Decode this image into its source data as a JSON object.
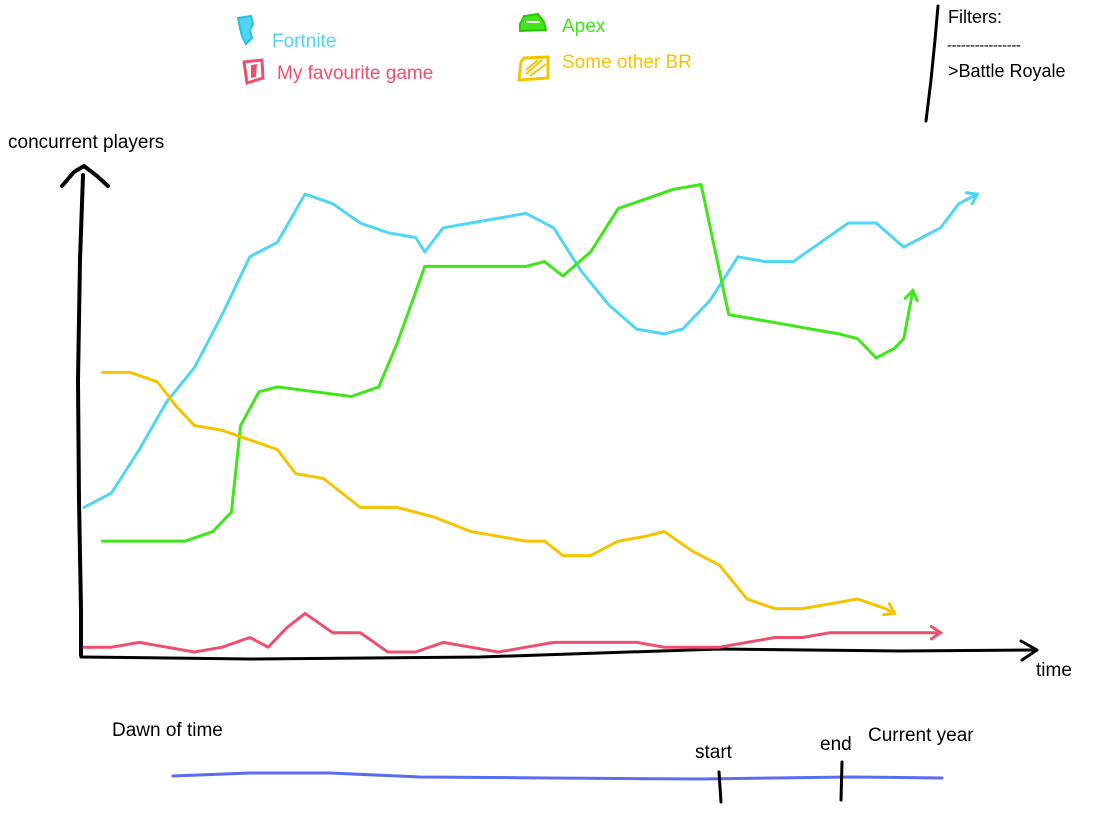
{
  "legend": {
    "items": [
      {
        "label": "Fortnite",
        "color": "#4fd6f2",
        "icon": "fortnite-logo-icon"
      },
      {
        "label": "My favourite game",
        "color": "#ef4f6f",
        "icon": "favourite-game-logo-icon"
      },
      {
        "label": "Apex",
        "color": "#3ee61a",
        "icon": "apex-logo-icon"
      },
      {
        "label": "Some other BR",
        "color": "#f5c400",
        "icon": "other-br-logo-icon"
      }
    ]
  },
  "filters": {
    "title": "Filters:",
    "separator": "----------------",
    "items": [
      ">Battle Royale"
    ]
  },
  "timeline": {
    "left_label": "Dawn of time",
    "right_label": "Current year",
    "start_label": "start",
    "end_label": "end",
    "start_fraction": 0.71,
    "end_fraction": 0.87,
    "line_color": "#5b6cf0"
  },
  "chart_data": {
    "type": "line",
    "title": "",
    "xlabel": "time",
    "ylabel": "concurrent players",
    "xlim": [
      0,
      100
    ],
    "ylim": [
      0,
      100
    ],
    "grid": false,
    "legend_position": "top",
    "series": [
      {
        "name": "Fortnite",
        "color": "#4fd6f2",
        "x": [
          0,
          3,
          6,
          9,
          12,
          15,
          18,
          21,
          24,
          27,
          30,
          33,
          36,
          37,
          39,
          42,
          45,
          48,
          51,
          54,
          57,
          60,
          63,
          65,
          68,
          71,
          74,
          77,
          80,
          83,
          86,
          89,
          91,
          93,
          95,
          97
        ],
        "y": [
          30,
          33,
          42,
          52,
          59,
          70,
          82,
          85,
          95,
          93,
          89,
          87,
          86,
          83,
          88,
          89,
          90,
          91,
          88,
          79,
          72,
          67,
          66,
          67,
          73,
          82,
          81,
          81,
          85,
          89,
          89,
          84,
          86,
          88,
          93,
          95
        ]
      },
      {
        "name": "Apex",
        "color": "#3ee61a",
        "x": [
          2,
          7,
          11,
          14,
          16,
          17,
          19,
          21,
          25,
          29,
          32,
          34,
          37,
          40,
          44,
          48,
          50,
          52,
          55,
          58,
          61,
          64,
          67,
          70,
          73,
          76,
          79,
          82,
          84,
          86,
          88,
          89,
          90
        ],
        "y": [
          23,
          23,
          23,
          25,
          29,
          47,
          54,
          55,
          54,
          53,
          55,
          64,
          80,
          80,
          80,
          80,
          81,
          78,
          83,
          92,
          94,
          96,
          97,
          70,
          69,
          68,
          67,
          66,
          65,
          61,
          63,
          65,
          75
        ]
      },
      {
        "name": "Some other BR",
        "color": "#f5c400",
        "x": [
          2,
          5,
          8,
          10,
          12,
          15,
          18,
          21,
          23,
          26,
          30,
          34,
          38,
          42,
          45,
          48,
          50,
          52,
          55,
          58,
          61,
          63,
          66,
          69,
          72,
          75,
          78,
          81,
          84,
          87,
          88
        ],
        "y": [
          58,
          58,
          56,
          51,
          47,
          46,
          44,
          42,
          37,
          36,
          30,
          30,
          28,
          25,
          24,
          23,
          23,
          20,
          20,
          23,
          24,
          25,
          21,
          18,
          11,
          9,
          9,
          10,
          11,
          9,
          8
        ]
      },
      {
        "name": "My favourite game",
        "color": "#ef4f6f",
        "x": [
          0,
          3,
          6,
          9,
          12,
          15,
          18,
          20,
          22,
          24,
          27,
          30,
          33,
          36,
          39,
          42,
          45,
          48,
          51,
          54,
          57,
          60,
          63,
          66,
          69,
          72,
          75,
          78,
          81,
          84,
          87,
          90,
          93
        ],
        "y": [
          1,
          1,
          2,
          1,
          0,
          1,
          3,
          1,
          5,
          8,
          4,
          4,
          0,
          0,
          2,
          1,
          0,
          1,
          2,
          2,
          2,
          2,
          1,
          1,
          1,
          2,
          3,
          3,
          4,
          4,
          4,
          4,
          4
        ]
      }
    ]
  }
}
